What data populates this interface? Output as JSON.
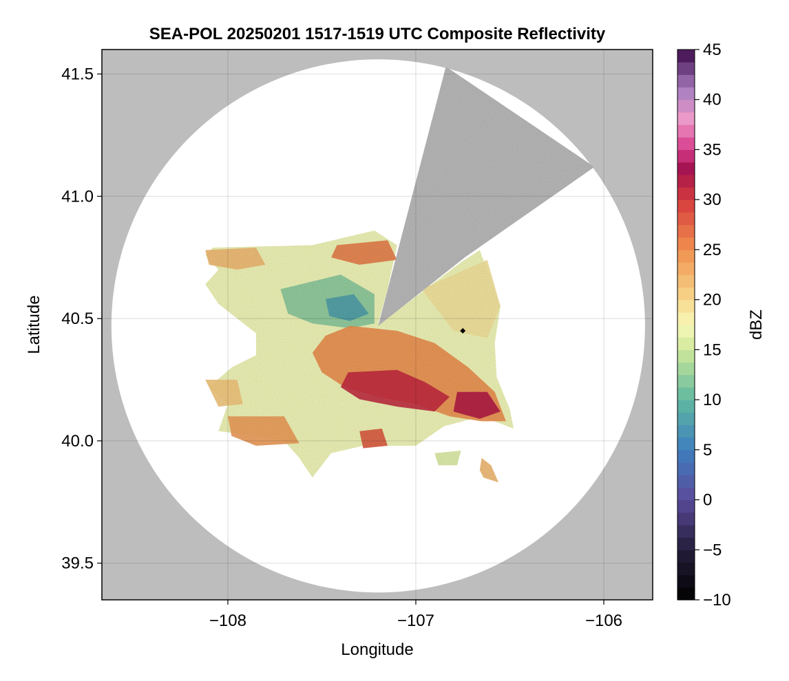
{
  "chart_data": {
    "type": "heatmap",
    "title": "SEA-POL 20250201 1517-1519 UTC Composite Reflectivity",
    "xlabel": "Longitude",
    "ylabel": "Latitude",
    "xlim": [
      -108.67,
      -105.74
    ],
    "ylim": [
      39.35,
      41.6
    ],
    "xticks": [
      -108,
      -107,
      -106
    ],
    "yticks": [
      39.5,
      40.0,
      40.5,
      41.0,
      41.5
    ],
    "xtick_labels": [
      "−108",
      "−107",
      "−106"
    ],
    "ytick_labels": [
      "39.5",
      "40.0",
      "40.5",
      "41.0",
      "41.5"
    ],
    "grid": true,
    "background_color": "#bdbdbd",
    "radar": {
      "site": {
        "lon": -107.2,
        "lat": 40.47
      },
      "coverage_radius_deg_lat": 1.09,
      "blocked_sector": [
        {
          "lon": -106.84,
          "lat": 41.53
        },
        {
          "lon": -106.05,
          "lat": 41.12
        },
        {
          "lon": -106.74,
          "lat": 40.75
        }
      ]
    },
    "site_marker": {
      "lon": -106.75,
      "lat": 40.45,
      "color": "#000000"
    },
    "colorbar": {
      "label": "dBZ",
      "min": -10,
      "max": 45,
      "ticks": [
        -10,
        -5,
        0,
        5,
        10,
        15,
        20,
        25,
        30,
        35,
        40,
        45
      ],
      "tick_labels": [
        "−10",
        "−5",
        "0",
        "5",
        "10",
        "15",
        "20",
        "25",
        "30",
        "35",
        "40",
        "45"
      ],
      "stops": [
        {
          "v": -10,
          "c": "#000000"
        },
        {
          "v": -5,
          "c": "#241d3a"
        },
        {
          "v": 0,
          "c": "#5a4a9a"
        },
        {
          "v": 5,
          "c": "#3f7fbf"
        },
        {
          "v": 10,
          "c": "#5fb8a0"
        },
        {
          "v": 15,
          "c": "#cfe89a"
        },
        {
          "v": 17.5,
          "c": "#f8f8b8"
        },
        {
          "v": 20,
          "c": "#f7d88c"
        },
        {
          "v": 25,
          "c": "#f0904f"
        },
        {
          "v": 30,
          "c": "#d63b3d"
        },
        {
          "v": 33,
          "c": "#a3124f"
        },
        {
          "v": 35,
          "c": "#d63a8a"
        },
        {
          "v": 38,
          "c": "#ee9ac8"
        },
        {
          "v": 41,
          "c": "#a87ec0"
        },
        {
          "v": 45,
          "c": "#3d0a4a"
        }
      ]
    },
    "echo_regions": [
      {
        "shape": [
          [
            -108.08,
            40.79
          ],
          [
            -107.55,
            40.8
          ],
          [
            -107.22,
            40.86
          ],
          [
            -107.1,
            40.8
          ],
          [
            -107.15,
            40.62
          ],
          [
            -107.2,
            40.48
          ],
          [
            -107.05,
            40.56
          ],
          [
            -106.76,
            40.73
          ],
          [
            -106.66,
            40.78
          ],
          [
            -106.6,
            40.66
          ],
          [
            -106.55,
            40.55
          ],
          [
            -106.58,
            40.4
          ],
          [
            -106.57,
            40.26
          ],
          [
            -106.5,
            40.13
          ],
          [
            -106.48,
            40.05
          ],
          [
            -106.65,
            40.1
          ],
          [
            -106.85,
            40.06
          ],
          [
            -107.0,
            39.98
          ],
          [
            -107.12,
            39.98
          ],
          [
            -107.28,
            39.98
          ],
          [
            -107.45,
            39.95
          ],
          [
            -107.55,
            39.85
          ],
          [
            -107.62,
            39.93
          ],
          [
            -107.7,
            40.0
          ],
          [
            -107.85,
            40.02
          ],
          [
            -108.05,
            40.04
          ],
          [
            -108.0,
            40.15
          ],
          [
            -108.1,
            40.22
          ],
          [
            -107.98,
            40.3
          ],
          [
            -107.85,
            40.35
          ],
          [
            -107.85,
            40.44
          ],
          [
            -107.95,
            40.5
          ],
          [
            -108.05,
            40.56
          ],
          [
            -108.12,
            40.64
          ],
          [
            -108.05,
            40.7
          ],
          [
            -108.12,
            40.76
          ]
        ],
        "dbz": 17
      },
      {
        "shape": [
          [
            -107.72,
            40.62
          ],
          [
            -107.4,
            40.68
          ],
          [
            -107.22,
            40.6
          ],
          [
            -107.22,
            40.48
          ],
          [
            -107.35,
            40.46
          ],
          [
            -107.55,
            40.48
          ],
          [
            -107.68,
            40.52
          ]
        ],
        "dbz": 12
      },
      {
        "shape": [
          [
            -107.48,
            40.58
          ],
          [
            -107.33,
            40.6
          ],
          [
            -107.25,
            40.52
          ],
          [
            -107.35,
            40.49
          ],
          [
            -107.46,
            40.51
          ]
        ],
        "dbz": 8
      },
      {
        "shape": [
          [
            -107.35,
            40.47
          ],
          [
            -107.1,
            40.45
          ],
          [
            -106.9,
            40.4
          ],
          [
            -106.72,
            40.3
          ],
          [
            -106.58,
            40.2
          ],
          [
            -106.52,
            40.08
          ],
          [
            -106.65,
            40.08
          ],
          [
            -106.82,
            40.1
          ],
          [
            -107.0,
            40.15
          ],
          [
            -107.2,
            40.18
          ],
          [
            -107.38,
            40.22
          ],
          [
            -107.5,
            40.28
          ],
          [
            -107.55,
            40.36
          ],
          [
            -107.48,
            40.43
          ]
        ],
        "dbz": 25
      },
      {
        "shape": [
          [
            -107.36,
            40.28
          ],
          [
            -107.1,
            40.29
          ],
          [
            -106.95,
            40.24
          ],
          [
            -106.82,
            40.18
          ],
          [
            -106.9,
            40.12
          ],
          [
            -107.1,
            40.14
          ],
          [
            -107.3,
            40.17
          ],
          [
            -107.4,
            40.22
          ]
        ],
        "dbz": 31
      },
      {
        "shape": [
          [
            -106.78,
            40.2
          ],
          [
            -106.62,
            40.2
          ],
          [
            -106.55,
            40.12
          ],
          [
            -106.66,
            40.09
          ],
          [
            -106.8,
            40.12
          ]
        ],
        "dbz": 32
      },
      {
        "shape": [
          [
            -108.12,
            40.78
          ],
          [
            -107.85,
            40.79
          ],
          [
            -107.8,
            40.72
          ],
          [
            -107.95,
            40.7
          ],
          [
            -108.1,
            40.72
          ]
        ],
        "dbz": 22
      },
      {
        "shape": [
          [
            -107.42,
            40.8
          ],
          [
            -107.15,
            40.82
          ],
          [
            -107.1,
            40.74
          ],
          [
            -107.3,
            40.72
          ],
          [
            -107.45,
            40.75
          ]
        ],
        "dbz": 26
      },
      {
        "shape": [
          [
            -108.12,
            40.25
          ],
          [
            -107.95,
            40.25
          ],
          [
            -107.92,
            40.15
          ],
          [
            -108.05,
            40.14
          ]
        ],
        "dbz": 21
      },
      {
        "shape": [
          [
            -108.0,
            40.1
          ],
          [
            -107.7,
            40.1
          ],
          [
            -107.62,
            39.99
          ],
          [
            -107.85,
            39.98
          ],
          [
            -107.98,
            40.02
          ]
        ],
        "dbz": 24
      },
      {
        "shape": [
          [
            -107.3,
            40.04
          ],
          [
            -107.18,
            40.05
          ],
          [
            -107.15,
            39.98
          ],
          [
            -107.28,
            39.97
          ]
        ],
        "dbz": 28
      },
      {
        "shape": [
          [
            -106.97,
            40.62
          ],
          [
            -106.62,
            40.74
          ],
          [
            -106.55,
            40.55
          ],
          [
            -106.62,
            40.42
          ],
          [
            -106.8,
            40.45
          ]
        ],
        "dbz": 19
      },
      {
        "shape": [
          [
            -106.9,
            39.95
          ],
          [
            -106.76,
            39.96
          ],
          [
            -106.78,
            39.9
          ],
          [
            -106.88,
            39.9
          ]
        ],
        "dbz": 16
      },
      {
        "shape": [
          [
            -106.65,
            39.93
          ],
          [
            -106.6,
            39.9
          ],
          [
            -106.56,
            39.83
          ],
          [
            -106.64,
            39.85
          ],
          [
            -106.66,
            39.88
          ]
        ],
        "dbz": 22
      }
    ]
  }
}
